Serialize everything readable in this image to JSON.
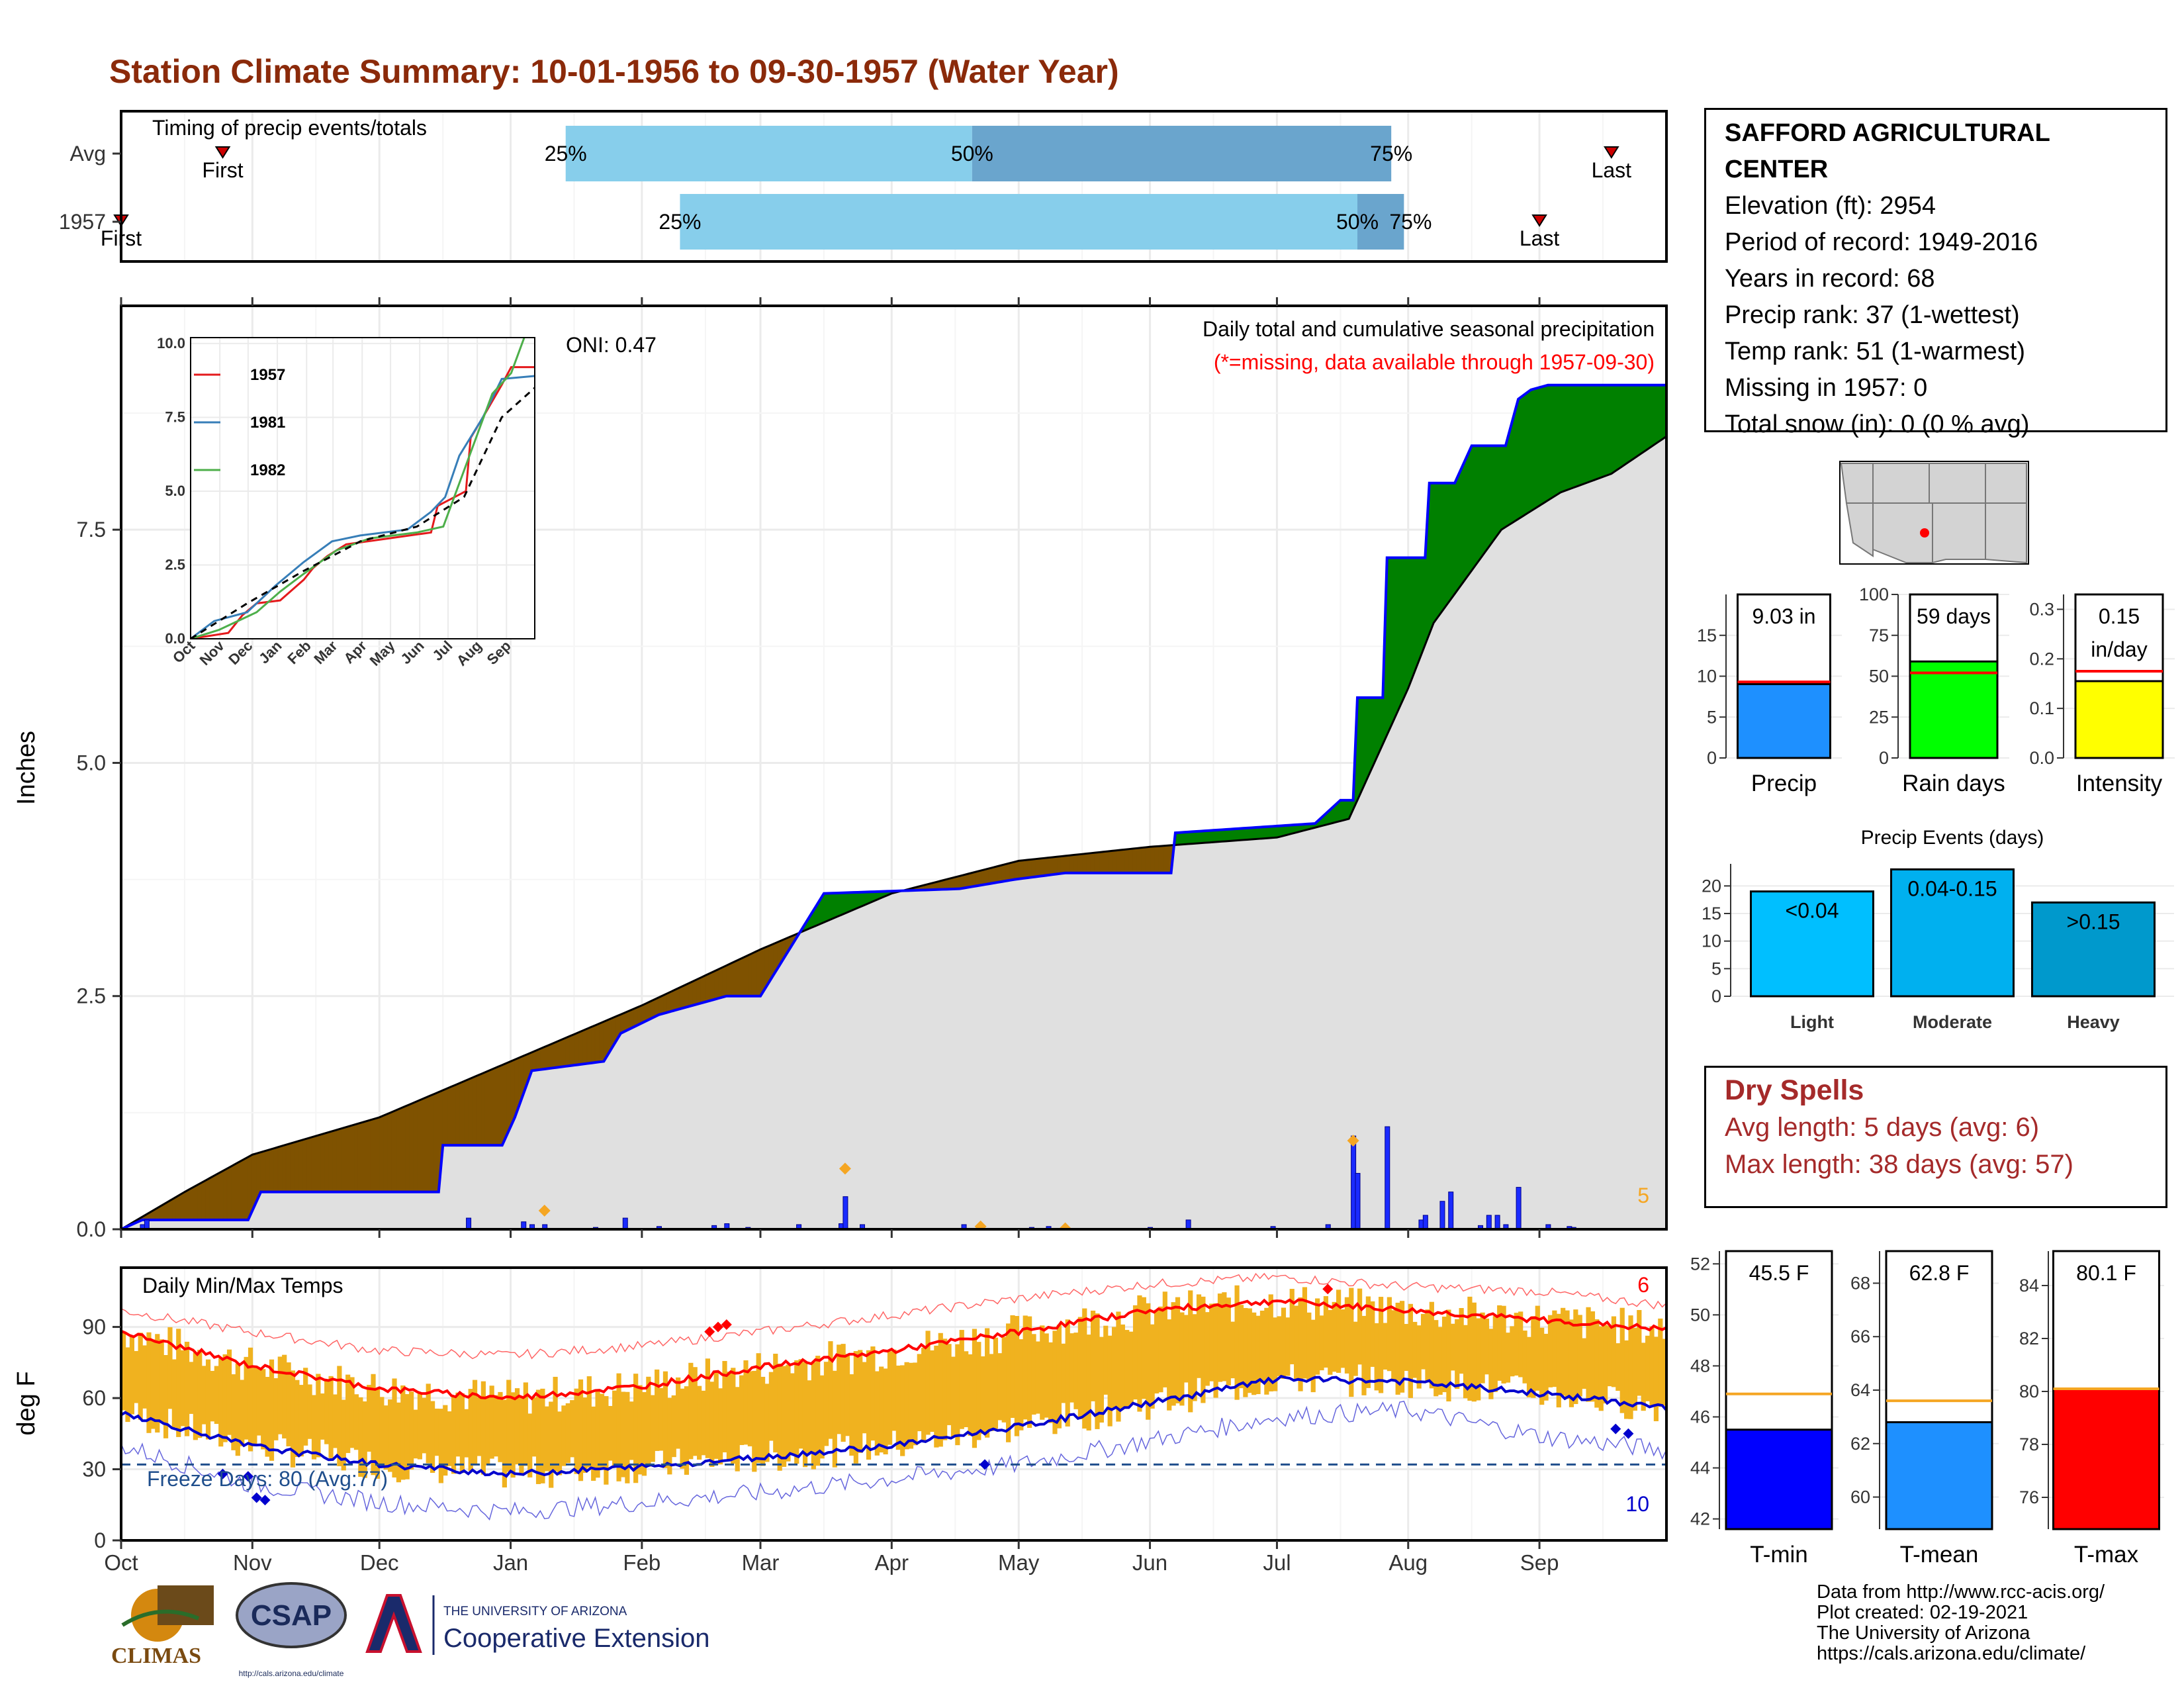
{
  "page_title": "Station Climate Summary: 10-01-1956 to 09-30-1957 (Water Year)",
  "colors": {
    "title": "#8b2a0a",
    "deficit": "#7f5200",
    "surplus": "#008000",
    "current_line": "#0000ff",
    "avg_fill": "#e0e0e0",
    "timing_light": "#87ceeb",
    "timing_dark": "#6aa5cd",
    "temp_bars": "#f0b21f",
    "max_line": "#ff0000",
    "min_line": "#0000cd",
    "dry_text": "#a52a2a"
  },
  "station_info": {
    "name": "SAFFORD AGRICULTURAL CENTER",
    "elevation": "Elevation (ft): 2954",
    "period": "Period of record: 1949-2016",
    "years": "Years in record: 68",
    "precip_rank": "Precip rank: 37 (1-wettest)",
    "temp_rank": "Temp rank: 51 (1-warmest)",
    "missing": "Missing in 1957: 0",
    "snow": "Total snow (in): 0 (0 % avg)"
  },
  "dry_spells": {
    "title": "Dry Spells",
    "avg": "Avg length: 5 days (avg: 6)",
    "max": "Max length: 38 days (avg: 57)"
  },
  "footer": {
    "line1": "Data from http://www.rcc-acis.org/",
    "line2": "Plot created: 02-19-2021",
    "line3": "The University of Arizona",
    "line4": "https://cals.arizona.edu/climate/"
  },
  "logos": {
    "climas": "CLIMAS",
    "csap": "CSAP",
    "csap_url": "http://cals.arizona.edu/climate",
    "ua_top": "THE UNIVERSITY OF ARIZONA",
    "ua_main": "Cooperative Extension"
  },
  "chart_data": [
    {
      "id": "timing",
      "type": "bar",
      "title": "Timing of precip events/totals",
      "rows": [
        {
          "label": "Avg",
          "first": "Oct 25",
          "p25": "Jan 14",
          "p50": "Apr 20",
          "p75": "Jul 28",
          "last": "Sep 18",
          "first_label": "First",
          "last_label": "Last"
        },
        {
          "label": "1957",
          "first": "Oct 1",
          "p25": "Feb 10",
          "p50": "Jul 20",
          "p75": "Jul 31",
          "last": "Sep 1",
          "first_label": "First",
          "last_label": "Last"
        }
      ],
      "marker_labels": {
        "p25": "25%",
        "p50": "50%",
        "p75": "75%"
      }
    },
    {
      "id": "precip",
      "type": "area",
      "title": "Daily total and cumulative seasonal precipitation",
      "subtitle": "(*=missing, data available through 1957-09-30)",
      "annotation_oni": "ONI: 0.47",
      "corner_count": "5",
      "ylabel": "Inches",
      "ylim": [
        0,
        9.9
      ],
      "yticks": [
        "0.0",
        "2.5",
        "5.0",
        "7.5"
      ],
      "months": [
        "Oct",
        "Nov",
        "Dec",
        "Jan",
        "Feb",
        "Mar",
        "Apr",
        "May",
        "Jun",
        "Jul",
        "Aug",
        "Sep"
      ],
      "avg_cumulative": [
        [
          0,
          0
        ],
        [
          15,
          0.4
        ],
        [
          31,
          0.8
        ],
        [
          61,
          1.2
        ],
        [
          92,
          1.8
        ],
        [
          123,
          2.4
        ],
        [
          151,
          3.0
        ],
        [
          182,
          3.6
        ],
        [
          212,
          3.95
        ],
        [
          243,
          4.1
        ],
        [
          273,
          4.2
        ],
        [
          290,
          4.4
        ],
        [
          296,
          5.0
        ],
        [
          304,
          5.8
        ],
        [
          310,
          6.5
        ],
        [
          326,
          7.5
        ],
        [
          340,
          7.9
        ],
        [
          352,
          8.1
        ],
        [
          365,
          8.5
        ]
      ],
      "current_cumulative": [
        [
          0,
          0
        ],
        [
          5,
          0.1
        ],
        [
          30,
          0.1
        ],
        [
          33,
          0.4
        ],
        [
          75,
          0.4
        ],
        [
          76,
          0.9
        ],
        [
          90,
          0.9
        ],
        [
          93,
          1.2
        ],
        [
          97,
          1.7
        ],
        [
          114,
          1.8
        ],
        [
          118,
          2.1
        ],
        [
          127,
          2.3
        ],
        [
          143,
          2.5
        ],
        [
          151,
          2.5
        ],
        [
          166,
          3.6
        ],
        [
          198,
          3.65
        ],
        [
          211,
          3.75
        ],
        [
          223,
          3.82
        ],
        [
          232,
          3.82
        ],
        [
          248,
          3.82
        ],
        [
          249,
          4.25
        ],
        [
          282,
          4.35
        ],
        [
          288,
          4.6
        ],
        [
          291,
          4.6
        ],
        [
          292,
          5.7
        ],
        [
          298,
          5.7
        ],
        [
          299,
          7.2
        ],
        [
          308,
          7.2
        ],
        [
          309,
          8.0
        ],
        [
          315,
          8.0
        ],
        [
          319,
          8.4
        ],
        [
          327,
          8.4
        ],
        [
          330,
          8.9
        ],
        [
          333,
          9.0
        ],
        [
          337,
          9.05
        ],
        [
          365,
          9.05
        ]
      ],
      "daily_bars": [
        [
          5,
          0.05
        ],
        [
          6,
          0.1
        ],
        [
          82,
          0.12
        ],
        [
          95,
          0.08
        ],
        [
          97,
          0.05
        ],
        [
          100,
          0.05
        ],
        [
          112,
          0.02
        ],
        [
          119,
          0.12
        ],
        [
          127,
          0.03
        ],
        [
          140,
          0.04
        ],
        [
          143,
          0.06
        ],
        [
          148,
          0.02
        ],
        [
          160,
          0.05
        ],
        [
          170,
          0.06
        ],
        [
          171,
          0.35
        ],
        [
          175,
          0.05
        ],
        [
          199,
          0.05
        ],
        [
          215,
          0.02
        ],
        [
          219,
          0.03
        ],
        [
          223,
          0.02
        ],
        [
          243,
          0.02
        ],
        [
          252,
          0.1
        ],
        [
          272,
          0.03
        ],
        [
          283,
          0.01
        ],
        [
          285,
          0.05
        ],
        [
          291,
          1.0
        ],
        [
          292,
          0.6
        ],
        [
          299,
          1.1
        ],
        [
          307,
          0.1
        ],
        [
          308,
          0.15
        ],
        [
          312,
          0.3
        ],
        [
          314,
          0.4
        ],
        [
          321,
          0.04
        ],
        [
          323,
          0.15
        ],
        [
          325,
          0.15
        ],
        [
          327,
          0.05
        ],
        [
          330,
          0.45
        ],
        [
          337,
          0.05
        ],
        [
          342,
          0.03
        ],
        [
          343,
          0.02
        ]
      ],
      "max_markers": [
        [
          100,
          0.2
        ],
        [
          171,
          0.65
        ],
        [
          203,
          0.03
        ],
        [
          223,
          0.01
        ],
        [
          291,
          0.95
        ]
      ]
    },
    {
      "id": "temps",
      "type": "line",
      "title": "Daily Min/Max Temps",
      "annotation_freeze": "Freeze Days: 80 (Avg:77)",
      "count_high": "6",
      "count_low": "10",
      "ylabel": "deg F",
      "ylim": [
        0,
        115
      ],
      "yticks": [
        "0",
        "30",
        "60",
        "90"
      ],
      "months": [
        "Oct",
        "Nov",
        "Dec",
        "Jan",
        "Feb",
        "Mar",
        "Apr",
        "May",
        "Jun",
        "Jul",
        "Aug",
        "Sep"
      ],
      "avg_max": [
        [
          0,
          88
        ],
        [
          30,
          74
        ],
        [
          61,
          64
        ],
        [
          92,
          60
        ],
        [
          123,
          65
        ],
        [
          151,
          73
        ],
        [
          182,
          80
        ],
        [
          212,
          88
        ],
        [
          243,
          97
        ],
        [
          273,
          101
        ],
        [
          304,
          97
        ],
        [
          335,
          93
        ],
        [
          365,
          89
        ]
      ],
      "avg_min": [
        [
          0,
          54
        ],
        [
          30,
          40
        ],
        [
          61,
          32
        ],
        [
          92,
          28
        ],
        [
          123,
          31
        ],
        [
          151,
          35
        ],
        [
          182,
          40
        ],
        [
          212,
          48
        ],
        [
          243,
          58
        ],
        [
          273,
          68
        ],
        [
          304,
          67
        ],
        [
          335,
          62
        ],
        [
          365,
          56
        ]
      ],
      "record_max": [
        [
          0,
          97
        ],
        [
          30,
          88
        ],
        [
          61,
          80
        ],
        [
          92,
          78
        ],
        [
          123,
          82
        ],
        [
          151,
          88
        ],
        [
          182,
          95
        ],
        [
          212,
          102
        ],
        [
          243,
          108
        ],
        [
          273,
          111
        ],
        [
          304,
          107
        ],
        [
          335,
          105
        ],
        [
          365,
          99
        ]
      ],
      "record_min": [
        [
          0,
          40
        ],
        [
          30,
          24
        ],
        [
          61,
          16
        ],
        [
          92,
          12
        ],
        [
          123,
          16
        ],
        [
          151,
          20
        ],
        [
          182,
          26
        ],
        [
          212,
          32
        ],
        [
          243,
          42
        ],
        [
          273,
          52
        ],
        [
          304,
          55
        ],
        [
          335,
          44
        ],
        [
          365,
          38
        ]
      ],
      "freeze_line": 32
    },
    {
      "id": "summary-precip",
      "type": "bar",
      "label": "9.03 in",
      "category": "Precip",
      "value": 9.03,
      "avg": 9.3,
      "ylim": [
        0,
        20
      ],
      "yticks": [
        "0",
        "5",
        "10",
        "15"
      ]
    },
    {
      "id": "summary-raindays",
      "type": "bar",
      "label": "59 days",
      "category": "Rain days",
      "value": 59,
      "avg": 52,
      "ylim": [
        0,
        100
      ],
      "yticks": [
        "0",
        "25",
        "50",
        "75",
        "100"
      ]
    },
    {
      "id": "summary-intensity",
      "type": "bar",
      "label": "0.15",
      "label2": "in/day",
      "category": "Intensity",
      "value": 0.155,
      "avg": 0.175,
      "ylim": [
        0,
        0.33
      ],
      "yticks": [
        "0.0",
        "0.1",
        "0.2",
        "0.3"
      ]
    },
    {
      "id": "events",
      "type": "bar",
      "title": "Precip Events (days)",
      "categories": [
        "Light",
        "Moderate",
        "Heavy"
      ],
      "labels": [
        "<0.04",
        "0.04-0.15",
        ">0.15"
      ],
      "values": [
        19,
        23,
        17
      ],
      "ylim": [
        0,
        24
      ],
      "yticks": [
        "0",
        "5",
        "10",
        "15",
        "20"
      ]
    },
    {
      "id": "summary-tmin",
      "type": "bar",
      "label": "45.5 F",
      "category": "T-min",
      "value": 45.5,
      "avg": 46.9,
      "ylim": [
        41.6,
        52.5
      ],
      "yticks": [
        "42",
        "44",
        "46",
        "48",
        "50",
        "52"
      ]
    },
    {
      "id": "summary-tmean",
      "type": "bar",
      "label": "62.8 F",
      "category": "T-mean",
      "value": 62.8,
      "avg": 63.6,
      "ylim": [
        58.8,
        69.2
      ],
      "yticks": [
        "60",
        "62",
        "64",
        "66",
        "68"
      ]
    },
    {
      "id": "summary-tmax",
      "type": "bar",
      "label": "80.1 F",
      "category": "T-max",
      "value": 80.1,
      "avg": 80.1,
      "ylim": [
        74.8,
        85.3
      ],
      "yticks": [
        "76",
        "78",
        "80",
        "82",
        "84"
      ]
    },
    {
      "id": "inset",
      "type": "line",
      "legend": [
        "1957",
        "1981",
        "1982"
      ],
      "series_colors": [
        "#e41a1c",
        "#377eb8",
        "#4daf4a"
      ],
      "months": [
        "Oct",
        "Nov",
        "Dec",
        "Jan",
        "Feb",
        "Mar",
        "Apr",
        "May",
        "Jun",
        "Jul",
        "Aug",
        "Sep"
      ],
      "yticks": [
        "0.0",
        "2.5",
        "5.0",
        "7.5",
        "10.0"
      ],
      "ylim": [
        0,
        10.2
      ]
    }
  ]
}
